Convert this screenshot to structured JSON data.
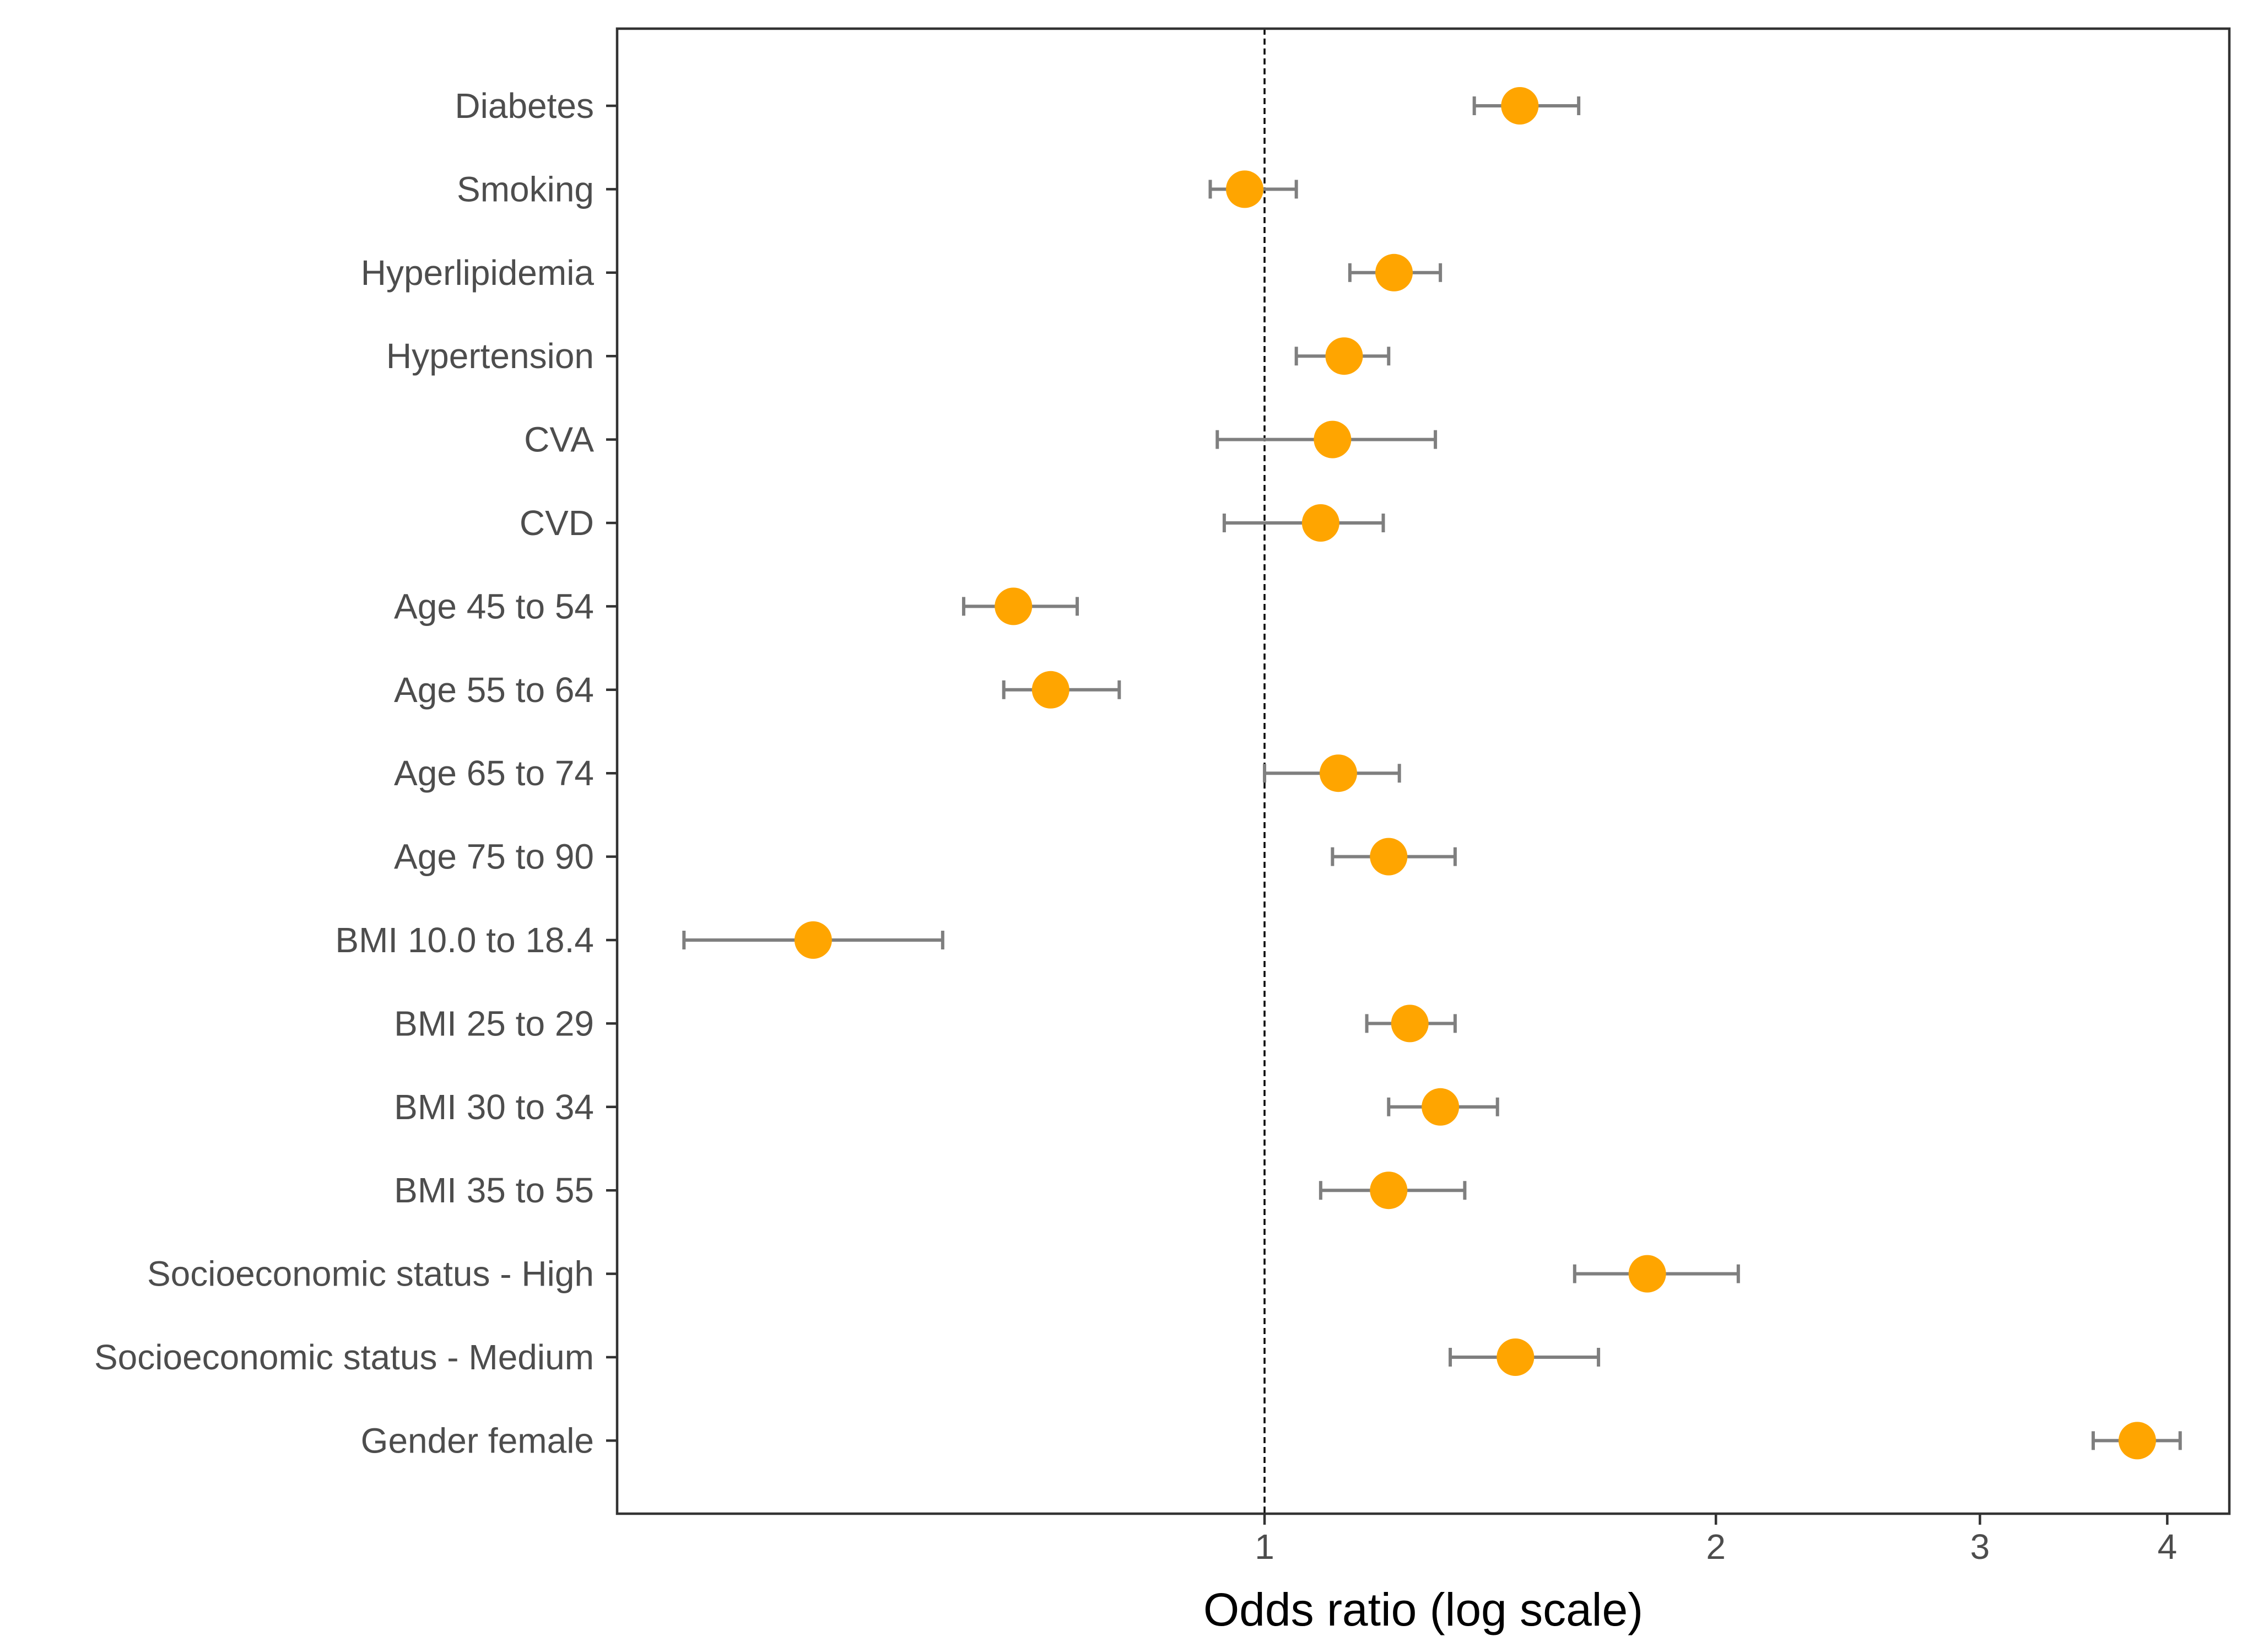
{
  "chart_data": {
    "type": "scatter",
    "subtype": "forest-plot",
    "xlabel": "Odds ratio (log scale)",
    "x_scale": "log",
    "xlim": [
      0.37,
      4.4
    ],
    "x_ticks": [
      {
        "value": 1,
        "label": "1"
      },
      {
        "value": 2,
        "label": "2"
      },
      {
        "value": 3,
        "label": "3"
      },
      {
        "value": 4,
        "label": "4"
      }
    ],
    "reference_line": 1,
    "grid": false,
    "point_color": "#FFA500",
    "errorbar_color": "#7F7F7F",
    "categories": [
      "Diabetes",
      "Smoking",
      "Hyperlipidemia",
      "Hypertension",
      "CVA",
      "CVD",
      "Age 45 to 54",
      "Age 55 to 64",
      "Age 65 to 74",
      "Age 75 to 90",
      "BMI 10.0 to 18.4",
      "BMI 25 to 29",
      "BMI 30 to 34",
      "BMI 35 to 55",
      "Socioeconomic status - High",
      "Socioeconomic status - Medium",
      "Gender female"
    ],
    "estimates": [
      1.48,
      0.97,
      1.22,
      1.13,
      1.11,
      1.09,
      0.68,
      0.72,
      1.12,
      1.21,
      0.5,
      1.25,
      1.31,
      1.21,
      1.8,
      1.47,
      3.82
    ],
    "ci_lower": [
      1.38,
      0.92,
      1.14,
      1.05,
      0.93,
      0.94,
      0.63,
      0.67,
      1.0,
      1.11,
      0.41,
      1.17,
      1.21,
      1.09,
      1.61,
      1.33,
      3.57
    ],
    "ci_upper": [
      1.62,
      1.05,
      1.31,
      1.21,
      1.3,
      1.2,
      0.75,
      0.8,
      1.23,
      1.34,
      0.61,
      1.34,
      1.43,
      1.36,
      2.07,
      1.67,
      4.08
    ]
  }
}
